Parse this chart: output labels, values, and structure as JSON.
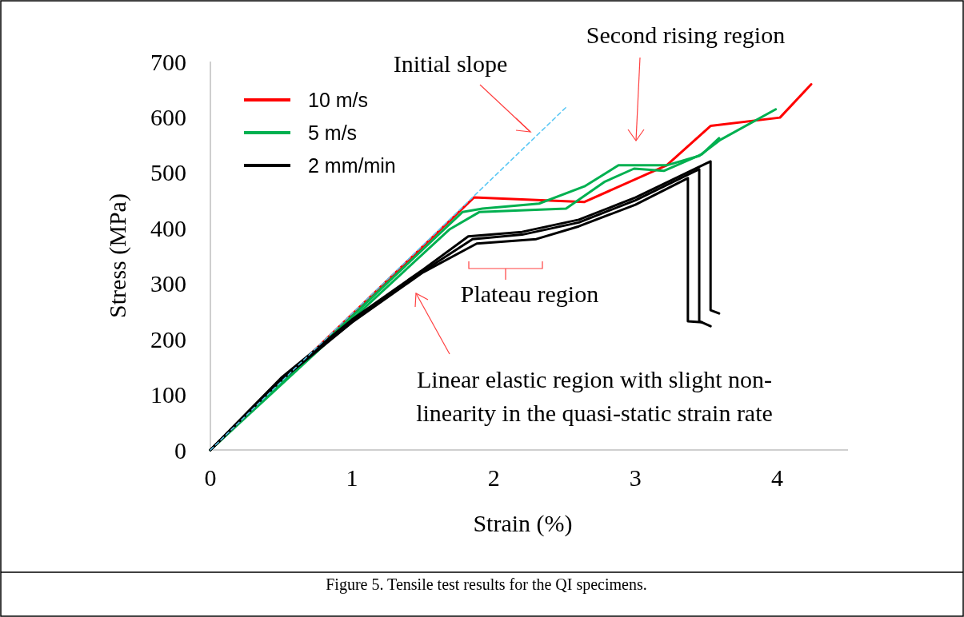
{
  "chart_data": {
    "type": "line",
    "xlabel": "Strain (%)",
    "ylabel": "Stress (MPa)",
    "xlim": [
      0,
      4.5
    ],
    "xticks": [
      0,
      1,
      2,
      3,
      4
    ],
    "ylim": [
      0,
      700
    ],
    "yticks": [
      0,
      100,
      200,
      300,
      400,
      500,
      600,
      700
    ],
    "grid": false,
    "legend": "top left",
    "marker": "none",
    "series": [
      {
        "name": "10 m/s",
        "color": "#ff0000",
        "x": [
          0,
          1.86,
          2.64,
          3.22,
          3.53,
          4.02,
          4.24
        ],
        "values": [
          0,
          455,
          447,
          513,
          584,
          599,
          659
        ]
      },
      {
        "name": "5 m/s",
        "color": "#00b050",
        "x": [
          0,
          1.78,
          1.92,
          2.32,
          2.64,
          2.88,
          3.22,
          3.45,
          3.6,
          3.99
        ],
        "values": [
          0,
          429,
          435,
          444,
          475,
          513,
          513,
          530,
          559,
          614
        ]
      },
      {
        "color": "#00b050",
        "x": [
          0,
          1.69,
          1.9,
          2.51,
          2.78,
          2.99,
          3.2,
          3.47,
          3.59
        ],
        "values": [
          0,
          398,
          429,
          435,
          483,
          507,
          503,
          533,
          562
        ]
      },
      {
        "name": "2 mm/min",
        "color": "#000000",
        "x": [
          0,
          0.5,
          1,
          1.5,
          1.82,
          2.2,
          2.6,
          3.0,
          3.53,
          3.53,
          3.59
        ],
        "values": [
          0,
          130,
          235,
          325,
          385,
          393,
          415,
          455,
          520,
          252,
          246
        ]
      },
      {
        "color": "#000000",
        "x": [
          0,
          0.5,
          1,
          1.5,
          1.85,
          2.2,
          2.6,
          3.0,
          3.45,
          3.45,
          3.53
        ],
        "values": [
          0,
          128,
          232,
          322,
          380,
          388,
          410,
          450,
          506,
          232,
          223
        ]
      },
      {
        "color": "#000000",
        "x": [
          0,
          0.5,
          1,
          1.5,
          1.88,
          2.3,
          2.6,
          3.0,
          3.37,
          3.37,
          3.47
        ],
        "values": [
          0,
          126,
          230,
          320,
          372,
          380,
          403,
          442,
          490,
          232,
          230
        ]
      },
      {
        "color": "#5bc8f5",
        "line_style": "dashed",
        "x": [
          0,
          2.52
        ],
        "values": [
          0,
          620
        ]
      }
    ],
    "annotations": [
      "Initial slope",
      "Second rising region",
      "Plateau region",
      "Linear elastic region with slight non-\nlinearity in the quasi-static strain rate",
      "Figure 5. Tensile test results for the QI specimens."
    ]
  }
}
